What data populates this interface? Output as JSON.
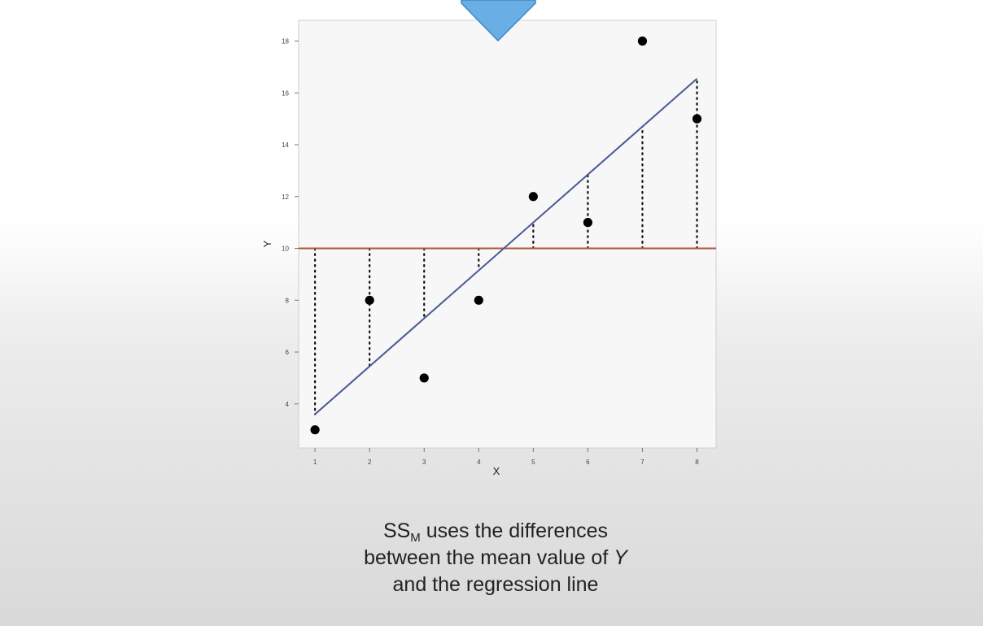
{
  "caption": {
    "ss_prefix": "SS",
    "ss_subscript": "M",
    "line1_rest": " uses the differences",
    "line2_a": "between the mean value of ",
    "line2_var": "Y",
    "line3": "and the regression line"
  },
  "icons": {
    "top_arrow": "down-arrow-icon"
  },
  "colors": {
    "arrow": "#6aaee6",
    "arrow_stroke": "#3f86c8",
    "mean_line": "#b5553f",
    "regression_line": "#4a5a9a",
    "points": "#000000",
    "plot_bg": "#f7f7f7"
  },
  "chart_data": {
    "type": "scatter",
    "xlabel": "X",
    "ylabel": "Y",
    "x_ticks": [
      1,
      2,
      3,
      4,
      5,
      6,
      7,
      8
    ],
    "y_ticks": [
      4,
      6,
      8,
      10,
      12,
      14,
      16,
      18
    ],
    "xlim": [
      0.7,
      8.35
    ],
    "ylim": [
      2.3,
      18.8
    ],
    "points": [
      {
        "x": 1,
        "y": 3
      },
      {
        "x": 2,
        "y": 8
      },
      {
        "x": 3,
        "y": 5
      },
      {
        "x": 4,
        "y": 8
      },
      {
        "x": 5,
        "y": 12
      },
      {
        "x": 6,
        "y": 11
      },
      {
        "x": 7,
        "y": 18
      },
      {
        "x": 8,
        "y": 15
      }
    ],
    "mean_y": 10,
    "regression": {
      "intercept": 1.75,
      "slope": 1.85
    },
    "grid": false,
    "residual_lines": "dotted, from mean line to regression line at each x"
  }
}
